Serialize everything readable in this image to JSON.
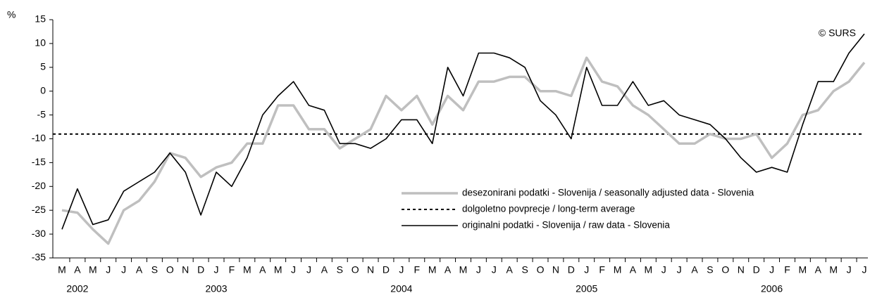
{
  "chart_data": {
    "type": "line",
    "y_label": "%",
    "annotation": "© SURS",
    "categories": [
      "M",
      "A",
      "M",
      "J",
      "J",
      "A",
      "S",
      "O",
      "N",
      "D",
      "J",
      "F",
      "M",
      "A",
      "M",
      "J",
      "J",
      "A",
      "S",
      "O",
      "N",
      "D",
      "J",
      "F",
      "M",
      "A",
      "M",
      "J",
      "J",
      "A",
      "S",
      "O",
      "N",
      "D",
      "J",
      "F",
      "M",
      "A",
      "M",
      "J",
      "J",
      "A",
      "S",
      "O",
      "N",
      "D",
      "J",
      "F",
      "M",
      "A",
      "M",
      "J",
      "J"
    ],
    "category_years": [
      null,
      "2002",
      null,
      null,
      null,
      null,
      null,
      null,
      null,
      null,
      "2003",
      null,
      null,
      null,
      null,
      null,
      null,
      null,
      null,
      null,
      null,
      null,
      "2004",
      null,
      null,
      null,
      null,
      null,
      null,
      null,
      null,
      null,
      null,
      null,
      "2005",
      null,
      null,
      null,
      null,
      null,
      null,
      null,
      null,
      null,
      null,
      null,
      "2006",
      null,
      null,
      null,
      null,
      null,
      null
    ],
    "series": [
      {
        "name": "desezonirani podatki - Slovenija / seasonally adjusted data - Slovenia",
        "color": "#bfbfbf",
        "values": [
          -25,
          -25.5,
          -29,
          -32,
          -25,
          -23,
          -19,
          -13,
          -14,
          -18,
          -16,
          -15,
          -11,
          -11,
          -3,
          -3,
          -8,
          -8,
          -12,
          -10,
          -8,
          -1,
          -4,
          -1,
          -7,
          -1,
          -4,
          2,
          2,
          3,
          3,
          0,
          0,
          -1,
          7,
          2,
          1,
          -3,
          -5,
          -8,
          -11,
          -11,
          -9,
          -10,
          -10,
          -9,
          -14,
          -11,
          -5,
          -4,
          0,
          2,
          6
        ]
      },
      {
        "name": "originalni podatki - Slovenija / raw data - Slovenia",
        "color": "#000000",
        "values": [
          -29,
          -20.5,
          -28,
          -27,
          -21,
          -19,
          -17,
          -13,
          -17,
          -26,
          -17,
          -20,
          -14,
          -5,
          -1,
          2,
          -3,
          -4,
          -11,
          -11,
          -12,
          -10,
          -6,
          -6,
          -11,
          5,
          -1,
          8,
          8,
          7,
          5,
          -2,
          -5,
          -10,
          5,
          -3,
          -3,
          2,
          -3,
          -2,
          -5,
          -6,
          -7,
          -10,
          -14,
          -17,
          -16,
          -17,
          -7,
          2,
          2,
          8,
          12
        ]
      }
    ],
    "reference_line": {
      "name": "dolgoletno povprecje / long-term average",
      "value": -9,
      "color": "#000000"
    },
    "ylim": [
      -35,
      15
    ],
    "yticks": [
      -35,
      -30,
      -25,
      -20,
      -15,
      -10,
      -5,
      0,
      5,
      10,
      15
    ],
    "legend": "lower-right"
  }
}
